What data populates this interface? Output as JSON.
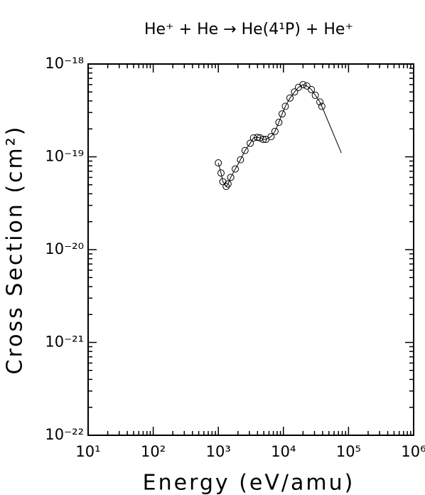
{
  "chart_data": {
    "type": "scatter",
    "title": "He⁺ + He → He(4¹P) + He⁺",
    "xlabel": "Energy (eV/amu)",
    "ylabel": "Cross Section (cm²)",
    "xscale": "log",
    "yscale": "log",
    "xlim": [
      10,
      1000000
    ],
    "ylim": [
      1e-22,
      1e-18
    ],
    "xticks": [
      {
        "value": 10,
        "label": "10¹"
      },
      {
        "value": 100,
        "label": "10²"
      },
      {
        "value": 1000,
        "label": "10³"
      },
      {
        "value": 10000,
        "label": "10⁴"
      },
      {
        "value": 100000,
        "label": "10⁵"
      },
      {
        "value": 1000000,
        "label": "10⁶"
      }
    ],
    "yticks": [
      {
        "value": 1e-22,
        "label": "10⁻²²"
      },
      {
        "value": 1e-21,
        "label": "10⁻²¹"
      },
      {
        "value": 1e-20,
        "label": "10⁻²⁰"
      },
      {
        "value": 1e-19,
        "label": "10⁻¹⁹"
      },
      {
        "value": 1e-18,
        "label": "10⁻¹⁸"
      }
    ],
    "minor_ticks": true,
    "series": [
      {
        "color": "#000000",
        "marker": "circle",
        "x": [
          1000,
          1100,
          1175,
          1320,
          1410,
          1550,
          1820,
          2190,
          2570,
          3090,
          3470,
          3980,
          4370,
          4900,
          5370,
          6460,
          7410,
          8510,
          9550,
          10700,
          12600,
          14800,
          17000,
          20000,
          22900,
          26900,
          30900,
          36300,
          38900
        ],
        "y": [
          8.6e-20,
          6.7e-20,
          5.4e-20,
          4.8e-20,
          5.1e-20,
          6e-20,
          7.4e-20,
          9.3e-20,
          1.17e-19,
          1.4e-19,
          1.6e-19,
          1.62e-19,
          1.6e-19,
          1.54e-19,
          1.54e-19,
          1.65e-19,
          1.88e-19,
          2.35e-19,
          2.9e-19,
          3.5e-19,
          4.3e-19,
          5e-19,
          5.6e-19,
          6e-19,
          5.8e-19,
          5.3e-19,
          4.6e-19,
          3.9e-19,
          3.5e-19
        ]
      },
      {
        "color": "#000000",
        "marker": "none",
        "x": [
          1000,
          1100,
          1175,
          1320,
          1410,
          1550,
          1820,
          2190,
          2570,
          3090,
          3470,
          3980,
          4370,
          4900,
          5370,
          6460,
          7410,
          8510,
          9550,
          10700,
          12600,
          14800,
          17000,
          20000,
          22900,
          26900,
          30900,
          36300,
          38900,
          77600
        ],
        "y": [
          8.6e-20,
          6.7e-20,
          5.4e-20,
          4.8e-20,
          5.1e-20,
          6e-20,
          7.4e-20,
          9.3e-20,
          1.17e-19,
          1.4e-19,
          1.6e-19,
          1.62e-19,
          1.6e-19,
          1.54e-19,
          1.54e-19,
          1.65e-19,
          1.88e-19,
          2.35e-19,
          2.9e-19,
          3.5e-19,
          4.3e-19,
          5e-19,
          5.6e-19,
          6e-19,
          5.8e-19,
          5.3e-19,
          4.6e-19,
          3.9e-19,
          3.5e-19,
          1.1e-19
        ]
      }
    ]
  }
}
